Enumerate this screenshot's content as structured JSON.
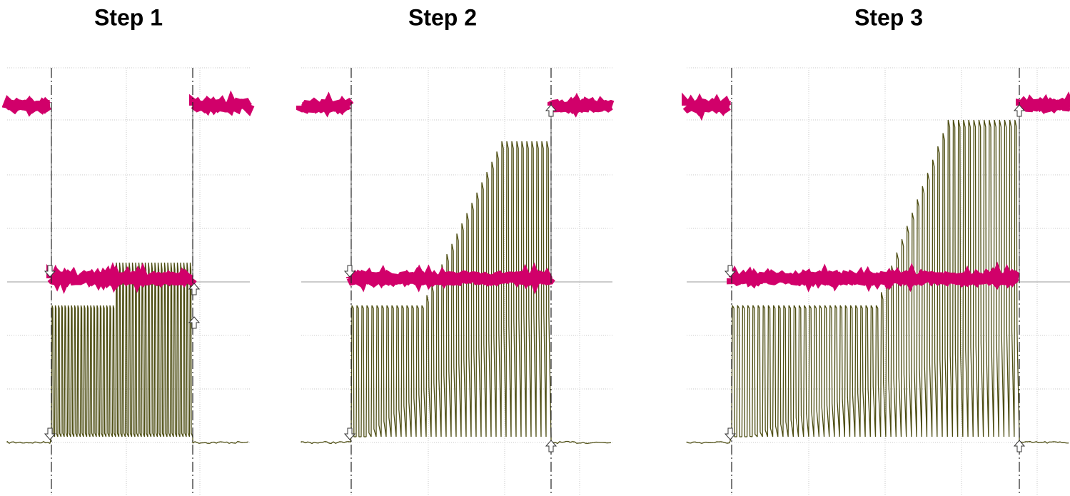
{
  "panels": [
    {
      "title": "Step 1"
    },
    {
      "title": "Step 2"
    },
    {
      "title": "Step 3"
    }
  ]
}
